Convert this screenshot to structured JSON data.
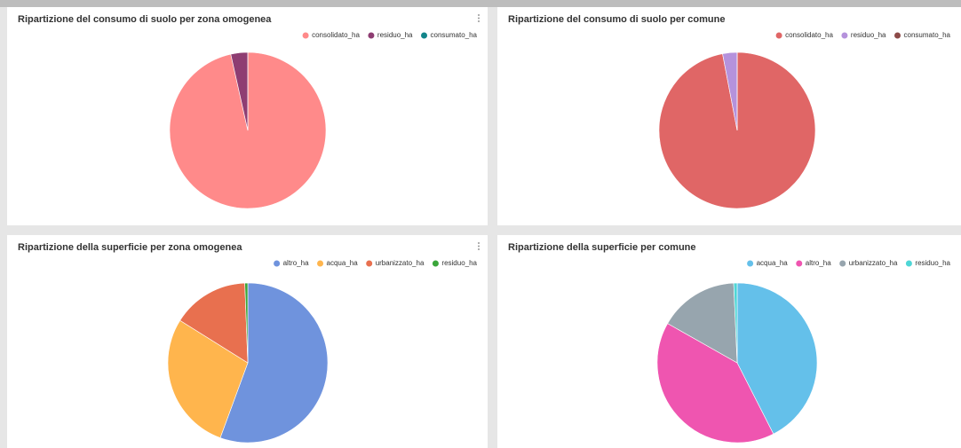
{
  "chart_data": [
    {
      "type": "pie",
      "title": "Ripartizione del consumo di suolo per zona omogenea",
      "categories": [
        "consolidato_ha",
        "residuo_ha",
        "consumato_ha"
      ],
      "values": [
        96.5,
        3.5,
        0
      ],
      "colors": [
        "#ff8a8a",
        "#8e3d72",
        "#12858a"
      ],
      "legend": "top-right"
    },
    {
      "type": "pie",
      "title": "Ripartizione del consumo di suolo per comune",
      "categories": [
        "consolidato_ha",
        "residuo_ha",
        "consumato_ha"
      ],
      "values": [
        97,
        3,
        0
      ],
      "colors": [
        "#e06666",
        "#b592dc",
        "#8c4a48"
      ],
      "legend": "top-right"
    },
    {
      "type": "pie",
      "title": "Ripartizione della superficie per zona omogenea",
      "categories": [
        "altro_ha",
        "acqua_ha",
        "urbanizzato_ha",
        "residuo_ha"
      ],
      "values": [
        55.6,
        28.3,
        15.5,
        0.6
      ],
      "colors": [
        "#6f93dd",
        "#ffb54d",
        "#e8704f",
        "#3aa63a"
      ],
      "legend": "top-right"
    },
    {
      "type": "pie",
      "title": "Ripartizione della superficie per comune",
      "categories": [
        "acqua_ha",
        "altro_ha",
        "urbanizzato_ha",
        "residuo_ha"
      ],
      "values": [
        42.5,
        40.7,
        16.1,
        0.7
      ],
      "colors": [
        "#64c0ea",
        "#ef55b0",
        "#97a5ae",
        "#4fd6d6"
      ],
      "legend": "top-right"
    }
  ]
}
